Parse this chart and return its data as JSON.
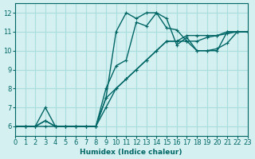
{
  "xlabel": "Humidex (Indice chaleur)",
  "ylabel": "",
  "xlim": [
    0,
    23
  ],
  "ylim": [
    5.5,
    12.5
  ],
  "xticks": [
    0,
    1,
    2,
    3,
    4,
    5,
    6,
    7,
    8,
    9,
    10,
    11,
    12,
    13,
    14,
    15,
    16,
    17,
    18,
    19,
    20,
    21,
    22,
    23
  ],
  "yticks": [
    6,
    7,
    8,
    9,
    10,
    11,
    12
  ],
  "bg_color": "#d4f0f0",
  "line_color": "#006666",
  "grid_color": "#aadddd",
  "lines": [
    {
      "x": [
        0,
        1,
        2,
        3,
        4,
        5,
        6,
        7,
        8,
        9,
        10,
        11,
        12,
        13,
        14,
        15,
        16,
        17,
        18,
        19,
        20,
        21,
        22,
        23
      ],
      "y": [
        6,
        6,
        6,
        6.3,
        6,
        6,
        6,
        6,
        6,
        7.5,
        11,
        12,
        11.7,
        12,
        12,
        11.2,
        11.1,
        10.5,
        10,
        10,
        10,
        11,
        11,
        11
      ]
    },
    {
      "x": [
        0,
        1,
        2,
        3,
        4,
        5,
        6,
        7,
        8,
        9,
        10,
        11,
        12,
        13,
        14,
        15,
        16,
        17,
        18,
        19,
        20,
        21,
        22,
        23
      ],
      "y": [
        6,
        6,
        6,
        7,
        6,
        6,
        6,
        6,
        6,
        8,
        9.2,
        9.5,
        11.5,
        11.3,
        12,
        11.7,
        10.3,
        10.7,
        10,
        10,
        10.1,
        10.4,
        11,
        11
      ]
    },
    {
      "x": [
        0,
        1,
        2,
        3,
        4,
        5,
        6,
        7,
        8,
        9,
        10,
        11,
        12,
        13,
        14,
        15,
        16,
        17,
        18,
        19,
        20,
        21,
        22,
        23
      ],
      "y": [
        6,
        6,
        6,
        6.3,
        6,
        6,
        6,
        6,
        6,
        7.5,
        8,
        8.5,
        9,
        9.5,
        10,
        10.5,
        10.5,
        10.5,
        10.5,
        10.7,
        10.8,
        11,
        11,
        11
      ]
    },
    {
      "x": [
        0,
        1,
        2,
        3,
        4,
        5,
        6,
        7,
        8,
        9,
        10,
        11,
        12,
        13,
        14,
        15,
        16,
        17,
        18,
        19,
        20,
        21,
        22,
        23
      ],
      "y": [
        6,
        6,
        6,
        6,
        6,
        6,
        6,
        6,
        6,
        7,
        8,
        8.5,
        9,
        9.5,
        10,
        10.5,
        10.5,
        10.8,
        10.8,
        10.8,
        10.8,
        10.9,
        11,
        11
      ]
    }
  ]
}
